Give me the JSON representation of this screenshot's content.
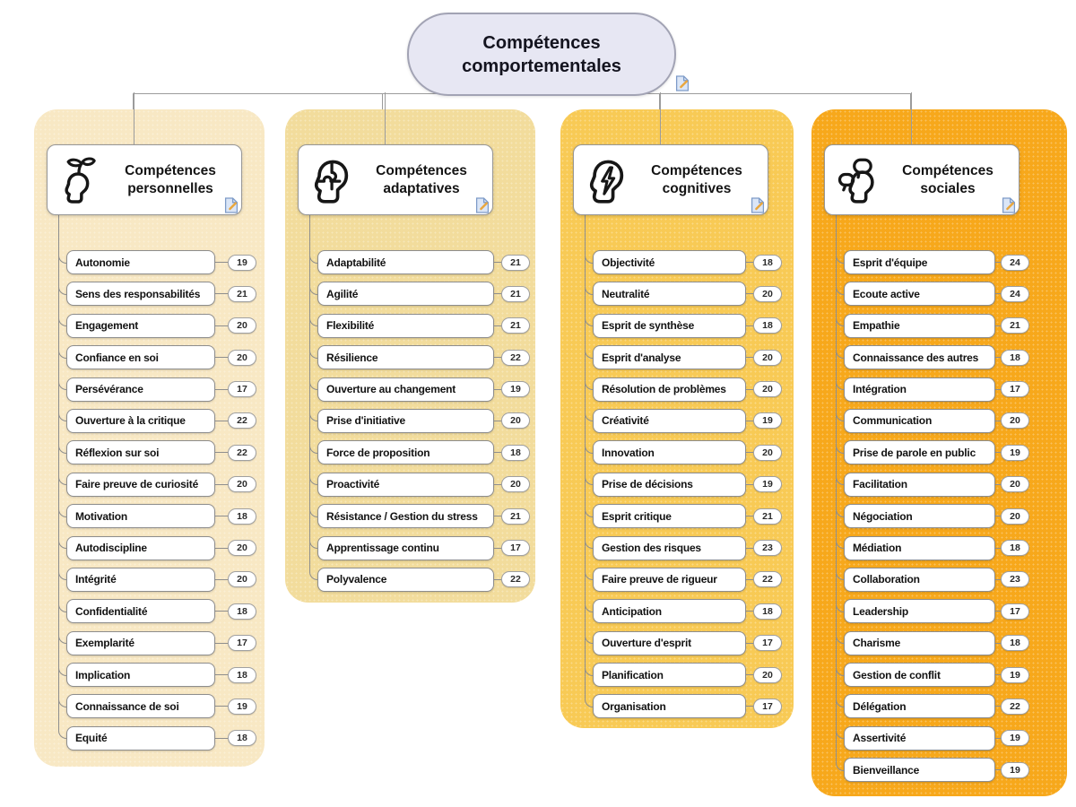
{
  "root": {
    "title": "Compétences comportementales",
    "fill": "#e7e7f3",
    "border": "#a2a3b4",
    "note_icon": "note-icon"
  },
  "connector_color": "#9b9b9b",
  "branches": [
    {
      "id": "personnelles",
      "title": "Compétences personnelles",
      "icon": "head-sprout-icon",
      "color": "#f8e8c4",
      "note_icon": "note-icon",
      "items": [
        {
          "label": "Autonomie",
          "value": "19"
        },
        {
          "label": "Sens des responsabilités",
          "value": "21"
        },
        {
          "label": "Engagement",
          "value": "20"
        },
        {
          "label": "Confiance en soi",
          "value": "20"
        },
        {
          "label": "Persévérance",
          "value": "17"
        },
        {
          "label": "Ouverture à la critique",
          "value": "22"
        },
        {
          "label": "Réflexion sur soi",
          "value": "22"
        },
        {
          "label": "Faire preuve de curiosité",
          "value": "20"
        },
        {
          "label": "Motivation",
          "value": "18"
        },
        {
          "label": "Autodiscipline",
          "value": "20"
        },
        {
          "label": "Intégrité",
          "value": "20"
        },
        {
          "label": "Confidentialité",
          "value": "18"
        },
        {
          "label": "Exemplarité",
          "value": "17"
        },
        {
          "label": "Implication",
          "value": "18"
        },
        {
          "label": "Connaissance de soi",
          "value": "19"
        },
        {
          "label": "Equité",
          "value": "18"
        }
      ]
    },
    {
      "id": "adaptatives",
      "title": "Compétences adaptatives",
      "icon": "head-puzzle-icon",
      "color": "#f2dc9c",
      "note_icon": "note-icon",
      "items": [
        {
          "label": "Adaptabilité",
          "value": "21"
        },
        {
          "label": "Agilité",
          "value": "21"
        },
        {
          "label": "Flexibilité",
          "value": "21"
        },
        {
          "label": "Résilience",
          "value": "22"
        },
        {
          "label": "Ouverture au changement",
          "value": "19"
        },
        {
          "label": "Prise d'initiative",
          "value": "20"
        },
        {
          "label": "Force de proposition",
          "value": "18"
        },
        {
          "label": "Proactivité",
          "value": "20"
        },
        {
          "label": "Résistance / Gestion du stress",
          "value": "21"
        },
        {
          "label": "Apprentissage continu",
          "value": "17"
        },
        {
          "label": "Polyvalence",
          "value": "22"
        }
      ]
    },
    {
      "id": "cognitives",
      "title": "Compétences cognitives",
      "icon": "head-lightning-icon",
      "color": "#f8ca55",
      "note_icon": "note-icon",
      "items": [
        {
          "label": "Objectivité",
          "value": "18"
        },
        {
          "label": "Neutralité",
          "value": "20"
        },
        {
          "label": "Esprit de synthèse",
          "value": "18"
        },
        {
          "label": "Esprit d'analyse",
          "value": "20"
        },
        {
          "label": "Résolution de problèmes",
          "value": "20"
        },
        {
          "label": "Créativité",
          "value": "19"
        },
        {
          "label": "Innovation",
          "value": "20"
        },
        {
          "label": "Prise de décisions",
          "value": "19"
        },
        {
          "label": "Esprit critique",
          "value": "21"
        },
        {
          "label": "Gestion des risques",
          "value": "23"
        },
        {
          "label": "Faire preuve de rigueur",
          "value": "22"
        },
        {
          "label": "Anticipation",
          "value": "18"
        },
        {
          "label": "Ouverture d'esprit",
          "value": "17"
        },
        {
          "label": "Planification",
          "value": "20"
        },
        {
          "label": "Organisation",
          "value": "17"
        }
      ]
    },
    {
      "id": "sociales",
      "title": "Compétences sociales",
      "icon": "head-speech-icon",
      "color": "#f7a81b",
      "note_icon": "note-icon",
      "items": [
        {
          "label": "Esprit d'équipe",
          "value": "24"
        },
        {
          "label": "Ecoute active",
          "value": "24"
        },
        {
          "label": "Empathie",
          "value": "21"
        },
        {
          "label": "Connaissance des autres",
          "value": "18"
        },
        {
          "label": "Intégration",
          "value": "17"
        },
        {
          "label": "Communication",
          "value": "20"
        },
        {
          "label": "Prise de parole en public",
          "value": "19"
        },
        {
          "label": "Facilitation",
          "value": "20"
        },
        {
          "label": "Négociation",
          "value": "20"
        },
        {
          "label": "Médiation",
          "value": "18"
        },
        {
          "label": "Collaboration",
          "value": "23"
        },
        {
          "label": "Leadership",
          "value": "17"
        },
        {
          "label": "Charisme",
          "value": "18"
        },
        {
          "label": "Gestion de conflit",
          "value": "19"
        },
        {
          "label": "Délégation",
          "value": "22"
        },
        {
          "label": "Assertivité",
          "value": "19"
        },
        {
          "label": "Bienveillance",
          "value": "19"
        }
      ]
    }
  ]
}
